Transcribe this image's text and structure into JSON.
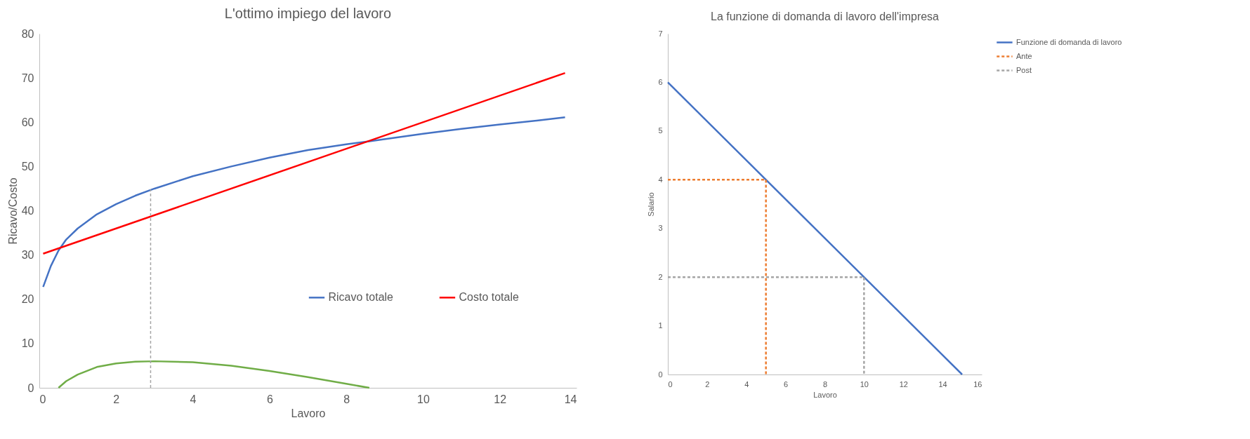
{
  "chart_data": [
    {
      "type": "line",
      "title": "L'ottimo impiego del lavoro",
      "xlabel": "Lavoro",
      "ylabel": "Ricavo/Costo",
      "xlim": [
        0,
        14
      ],
      "ylim": [
        0,
        80
      ],
      "xticks": [
        0,
        2,
        4,
        6,
        8,
        10,
        12,
        14
      ],
      "yticks": [
        0,
        10,
        20,
        30,
        40,
        50,
        60,
        70,
        80
      ],
      "legend": "bottom right",
      "series": [
        {
          "name": "Ricavo totale",
          "color": "#4472c4",
          "x": [
            0.1,
            0.3,
            0.5,
            0.7,
            1,
            1.5,
            2,
            2.5,
            3,
            4,
            5,
            6,
            7,
            8,
            8.6,
            10,
            11,
            12,
            13,
            13.7
          ],
          "values": [
            22.8,
            27.5,
            31,
            33.5,
            36,
            39.2,
            41.5,
            43.4,
            45,
            47.8,
            50,
            52,
            53.7,
            55,
            55.7,
            57.4,
            58.5,
            59.5,
            60.4,
            61.1
          ]
        },
        {
          "name": "Costo totale",
          "color": "#ff0000",
          "x": [
            0.1,
            13.7
          ],
          "values": [
            30.3,
            71.1
          ]
        },
        {
          "color": "#70ad47",
          "x": [
            0.5,
            0.7,
            1,
            1.5,
            2,
            2.5,
            3,
            4,
            5,
            6,
            7,
            8,
            8.6
          ],
          "values": [
            0,
            1.5,
            3,
            4.7,
            5.5,
            5.9,
            6,
            5.8,
            5,
            3.8,
            2.4,
            0.9,
            0
          ]
        },
        {
          "color": "#a5a5a5",
          "line_style": "dashed",
          "x": [
            2.9,
            2.9
          ],
          "values": [
            0,
            44.8
          ]
        }
      ]
    },
    {
      "type": "line",
      "title": "La funzione di domanda di lavoro dell'impresa",
      "xlabel": "Lavoro",
      "ylabel": "Salario",
      "xlim": [
        0,
        16
      ],
      "ylim": [
        0,
        7
      ],
      "xticks": [
        0,
        2,
        4,
        6,
        8,
        10,
        12,
        14,
        16
      ],
      "yticks": [
        0,
        1,
        2,
        3,
        4,
        5,
        6,
        7
      ],
      "legend": "right",
      "series": [
        {
          "name": "Funzione di domanda di lavoro",
          "color": "#4472c4",
          "x": [
            0,
            15
          ],
          "values": [
            6,
            0
          ]
        },
        {
          "name": "Ante",
          "color": "#ed7d31",
          "line_style": "dashed",
          "x": [
            0,
            5,
            5
          ],
          "values": [
            4,
            4,
            0
          ]
        },
        {
          "name": "Post",
          "color": "#a5a5a5",
          "line_style": "dashed",
          "x": [
            0,
            10,
            10
          ],
          "values": [
            2,
            2,
            0
          ]
        }
      ]
    }
  ]
}
